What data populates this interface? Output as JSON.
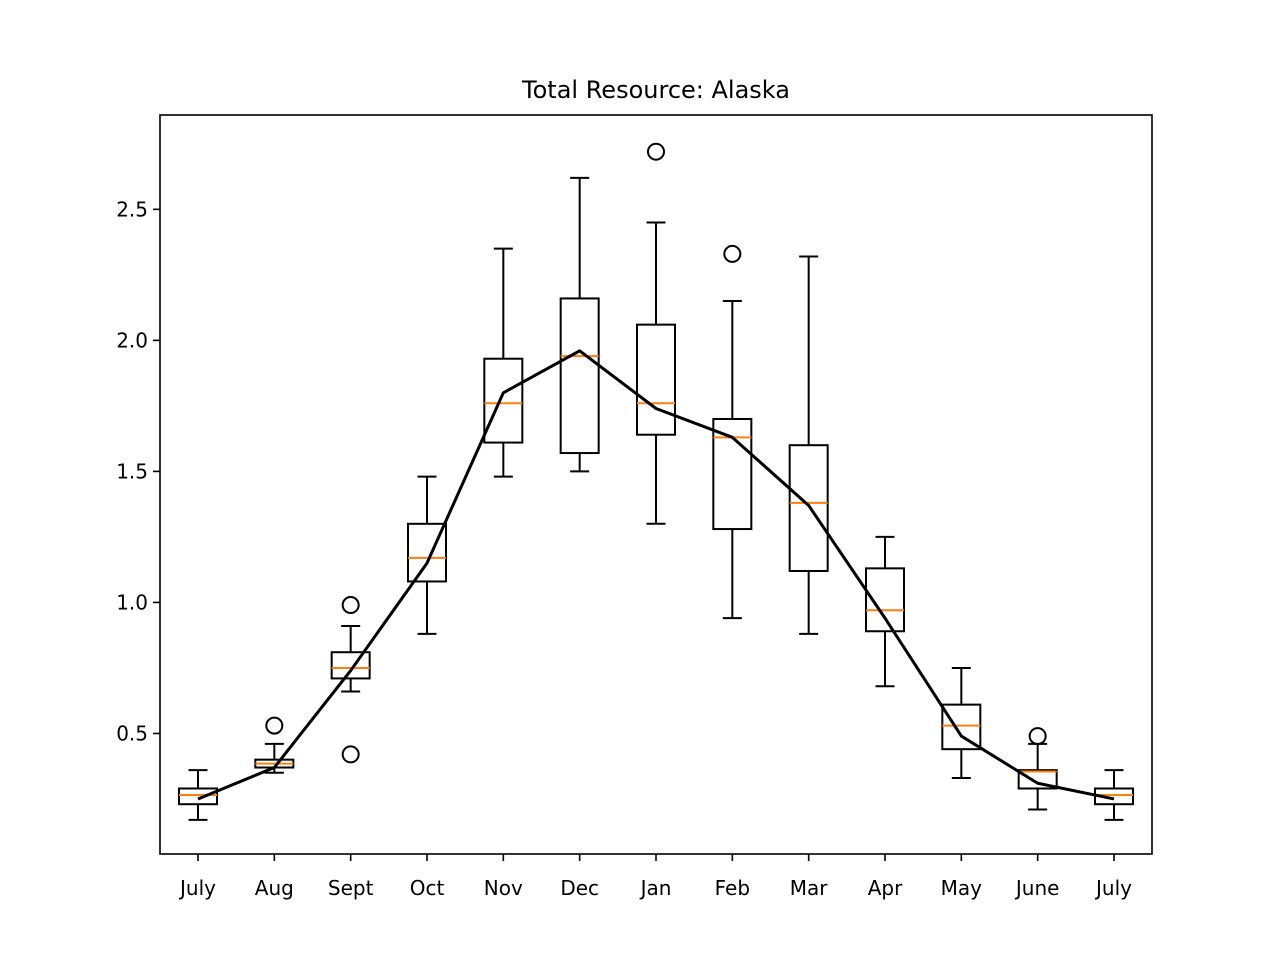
{
  "chart_data": {
    "type": "box",
    "title": "Total Resource: Alaska",
    "xlabel": "",
    "ylabel": "",
    "categories": [
      "July",
      "Aug",
      "Sept",
      "Oct",
      "Nov",
      "Dec",
      "Jan",
      "Feb",
      "Mar",
      "Apr",
      "May",
      "June",
      "July"
    ],
    "ylim": [
      0.04,
      2.86
    ],
    "yticks": [
      "0.5",
      "1.0",
      "1.5",
      "2.0",
      "2.5"
    ],
    "grid": false,
    "boxes": [
      {
        "whisker_low": 0.17,
        "q1": 0.23,
        "median": 0.265,
        "q3": 0.29,
        "whisker_high": 0.36,
        "outliers": []
      },
      {
        "whisker_low": 0.35,
        "q1": 0.37,
        "median": 0.385,
        "q3": 0.4,
        "whisker_high": 0.46,
        "outliers": [
          0.53
        ]
      },
      {
        "whisker_low": 0.66,
        "q1": 0.71,
        "median": 0.75,
        "q3": 0.81,
        "whisker_high": 0.91,
        "outliers": [
          0.99,
          0.42
        ]
      },
      {
        "whisker_low": 0.88,
        "q1": 1.08,
        "median": 1.17,
        "q3": 1.3,
        "whisker_high": 1.48,
        "outliers": []
      },
      {
        "whisker_low": 1.48,
        "q1": 1.61,
        "median": 1.76,
        "q3": 1.93,
        "whisker_high": 2.35,
        "outliers": []
      },
      {
        "whisker_low": 1.5,
        "q1": 1.57,
        "median": 1.94,
        "q3": 2.16,
        "whisker_high": 2.62,
        "outliers": []
      },
      {
        "whisker_low": 1.3,
        "q1": 1.64,
        "median": 1.76,
        "q3": 2.06,
        "whisker_high": 2.45,
        "outliers": [
          2.72
        ]
      },
      {
        "whisker_low": 0.94,
        "q1": 1.28,
        "median": 1.63,
        "q3": 1.7,
        "whisker_high": 2.15,
        "outliers": [
          2.33
        ]
      },
      {
        "whisker_low": 0.88,
        "q1": 1.12,
        "median": 1.38,
        "q3": 1.6,
        "whisker_high": 2.32,
        "outliers": []
      },
      {
        "whisker_low": 0.68,
        "q1": 0.89,
        "median": 0.97,
        "q3": 1.13,
        "whisker_high": 1.25,
        "outliers": []
      },
      {
        "whisker_low": 0.33,
        "q1": 0.44,
        "median": 0.53,
        "q3": 0.61,
        "whisker_high": 0.75,
        "outliers": []
      },
      {
        "whisker_low": 0.21,
        "q1": 0.29,
        "median": 0.355,
        "q3": 0.36,
        "whisker_high": 0.46,
        "outliers": [
          0.49
        ]
      },
      {
        "whisker_low": 0.17,
        "q1": 0.23,
        "median": 0.265,
        "q3": 0.29,
        "whisker_high": 0.36,
        "outliers": []
      }
    ],
    "mean_line": [
      0.25,
      0.37,
      0.74,
      1.15,
      1.8,
      1.96,
      1.74,
      1.63,
      1.37,
      0.94,
      0.49,
      0.31,
      0.25
    ],
    "colors": {
      "box": "#000000",
      "median": "#ff7f0e",
      "line": "#000000",
      "background": "#ffffff"
    }
  }
}
